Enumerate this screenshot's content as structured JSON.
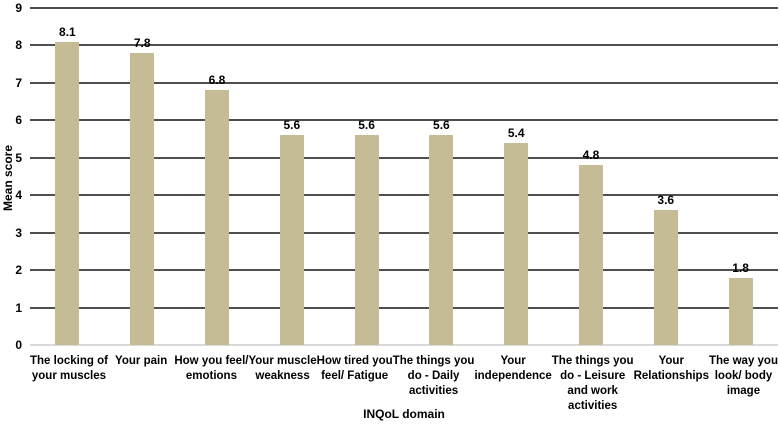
{
  "chart_data": {
    "type": "bar",
    "title": "",
    "xlabel": "INQoL domain",
    "ylabel": "Mean score",
    "ylim": [
      0,
      9
    ],
    "ytick_step": 1,
    "grid": true,
    "legend": "none",
    "bar_color": "#c5bc95",
    "gridline_color": "#4f4f4f",
    "baseline_color": "#d9d9d9",
    "categories": [
      "The locking of your muscles",
      "Your pain",
      "How you feel/ emotions",
      "Your muscle weakness",
      "How tired you feel/ Fatigue",
      "The things you do - Daily activities",
      "Your independence",
      "The things you do - Leisure and work activities",
      "Your Relationships",
      "The way you look/ body image"
    ],
    "category_label_lines": [
      [
        "The locking of",
        "your muscles"
      ],
      [
        "Your pain"
      ],
      [
        "How you feel/",
        "emotions"
      ],
      [
        "Your muscle",
        "weakness"
      ],
      [
        "How tired you",
        "feel/ Fatigue"
      ],
      [
        "The things you",
        "do - Daily",
        "activities"
      ],
      [
        "Your",
        "independence"
      ],
      [
        "The things you",
        "do - Leisure",
        "and work",
        "activities"
      ],
      [
        "Your",
        "Relationships"
      ],
      [
        "The way you",
        "look/ body",
        "image"
      ]
    ],
    "values": [
      8.1,
      7.8,
      6.8,
      5.6,
      5.6,
      5.6,
      5.4,
      4.8,
      3.6,
      1.8
    ],
    "value_labels": [
      "8.1",
      "7.8",
      "6.8",
      "5.6",
      "5.6",
      "5.6",
      "5.4",
      "4.8",
      "3.6",
      "1.8"
    ]
  }
}
